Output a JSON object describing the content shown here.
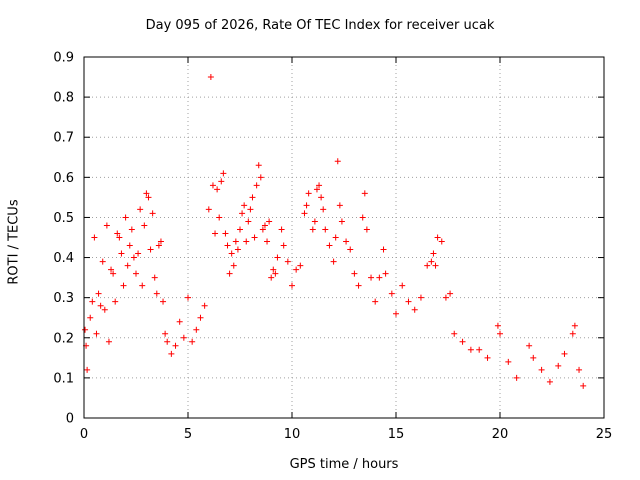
{
  "chart_data": {
    "type": "scatter",
    "title": "Day 095 of 2026, Rate Of TEC Index for receiver ucak",
    "xlabel": "GPS time / hours",
    "ylabel": "ROTI / TECUs",
    "xlim": [
      0,
      25
    ],
    "ylim": [
      0,
      0.9
    ],
    "xticks": [
      "0",
      "5",
      "10",
      "15",
      "20",
      "25"
    ],
    "yticks": [
      "0",
      "0.1",
      "0.2",
      "0.3",
      "0.4",
      "0.5",
      "0.6",
      "0.7",
      "0.8",
      "0.9"
    ],
    "grid": true,
    "marker": "+",
    "color": "#ff0000",
    "series": [
      {
        "values": [
          [
            0.05,
            0.22
          ],
          [
            0.1,
            0.18
          ],
          [
            0.15,
            0.12
          ],
          [
            0.3,
            0.25
          ],
          [
            0.4,
            0.29
          ],
          [
            0.5,
            0.45
          ],
          [
            0.6,
            0.21
          ],
          [
            0.7,
            0.31
          ],
          [
            0.8,
            0.28
          ],
          [
            0.9,
            0.39
          ],
          [
            1.0,
            0.27
          ],
          [
            1.1,
            0.48
          ],
          [
            1.2,
            0.19
          ],
          [
            1.3,
            0.37
          ],
          [
            1.4,
            0.36
          ],
          [
            1.5,
            0.29
          ],
          [
            1.6,
            0.46
          ],
          [
            1.7,
            0.45
          ],
          [
            1.8,
            0.41
          ],
          [
            1.9,
            0.33
          ],
          [
            2.0,
            0.5
          ],
          [
            2.1,
            0.38
          ],
          [
            2.2,
            0.43
          ],
          [
            2.3,
            0.47
          ],
          [
            2.4,
            0.4
          ],
          [
            2.5,
            0.36
          ],
          [
            2.6,
            0.41
          ],
          [
            2.7,
            0.52
          ],
          [
            2.8,
            0.33
          ],
          [
            2.9,
            0.48
          ],
          [
            3.0,
            0.56
          ],
          [
            3.1,
            0.55
          ],
          [
            3.2,
            0.42
          ],
          [
            3.3,
            0.51
          ],
          [
            3.4,
            0.35
          ],
          [
            3.5,
            0.31
          ],
          [
            3.6,
            0.43
          ],
          [
            3.7,
            0.44
          ],
          [
            3.8,
            0.29
          ],
          [
            3.9,
            0.21
          ],
          [
            4.0,
            0.19
          ],
          [
            4.2,
            0.16
          ],
          [
            4.4,
            0.18
          ],
          [
            4.6,
            0.24
          ],
          [
            4.8,
            0.2
          ],
          [
            5.0,
            0.3
          ],
          [
            5.2,
            0.19
          ],
          [
            5.4,
            0.22
          ],
          [
            5.6,
            0.25
          ],
          [
            5.8,
            0.28
          ],
          [
            6.0,
            0.52
          ],
          [
            6.1,
            0.85
          ],
          [
            6.2,
            0.58
          ],
          [
            6.3,
            0.46
          ],
          [
            6.4,
            0.57
          ],
          [
            6.5,
            0.5
          ],
          [
            6.6,
            0.59
          ],
          [
            6.7,
            0.61
          ],
          [
            6.8,
            0.46
          ],
          [
            6.9,
            0.43
          ],
          [
            7.0,
            0.36
          ],
          [
            7.1,
            0.41
          ],
          [
            7.2,
            0.38
          ],
          [
            7.3,
            0.44
          ],
          [
            7.4,
            0.42
          ],
          [
            7.5,
            0.47
          ],
          [
            7.6,
            0.51
          ],
          [
            7.7,
            0.53
          ],
          [
            7.8,
            0.44
          ],
          [
            7.9,
            0.49
          ],
          [
            8.0,
            0.52
          ],
          [
            8.1,
            0.55
          ],
          [
            8.2,
            0.45
          ],
          [
            8.3,
            0.58
          ],
          [
            8.4,
            0.63
          ],
          [
            8.5,
            0.6
          ],
          [
            8.6,
            0.47
          ],
          [
            8.7,
            0.48
          ],
          [
            8.8,
            0.44
          ],
          [
            8.9,
            0.49
          ],
          [
            9.0,
            0.35
          ],
          [
            9.1,
            0.37
          ],
          [
            9.2,
            0.36
          ],
          [
            9.3,
            0.4
          ],
          [
            9.5,
            0.47
          ],
          [
            9.6,
            0.43
          ],
          [
            9.8,
            0.39
          ],
          [
            10.0,
            0.33
          ],
          [
            10.2,
            0.37
          ],
          [
            10.4,
            0.38
          ],
          [
            10.6,
            0.51
          ],
          [
            10.7,
            0.53
          ],
          [
            10.8,
            0.56
          ],
          [
            11.0,
            0.47
          ],
          [
            11.1,
            0.49
          ],
          [
            11.2,
            0.57
          ],
          [
            11.3,
            0.58
          ],
          [
            11.4,
            0.55
          ],
          [
            11.5,
            0.52
          ],
          [
            11.6,
            0.47
          ],
          [
            11.8,
            0.43
          ],
          [
            12.0,
            0.39
          ],
          [
            12.1,
            0.45
          ],
          [
            12.2,
            0.64
          ],
          [
            12.3,
            0.53
          ],
          [
            12.4,
            0.49
          ],
          [
            12.6,
            0.44
          ],
          [
            12.8,
            0.42
          ],
          [
            13.0,
            0.36
          ],
          [
            13.2,
            0.33
          ],
          [
            13.4,
            0.5
          ],
          [
            13.5,
            0.56
          ],
          [
            13.6,
            0.47
          ],
          [
            13.8,
            0.35
          ],
          [
            14.0,
            0.29
          ],
          [
            14.2,
            0.35
          ],
          [
            14.4,
            0.42
          ],
          [
            14.5,
            0.36
          ],
          [
            14.8,
            0.31
          ],
          [
            15.0,
            0.26
          ],
          [
            15.3,
            0.33
          ],
          [
            15.6,
            0.29
          ],
          [
            15.9,
            0.27
          ],
          [
            16.2,
            0.3
          ],
          [
            16.5,
            0.38
          ],
          [
            16.7,
            0.39
          ],
          [
            16.8,
            0.41
          ],
          [
            16.9,
            0.38
          ],
          [
            17.0,
            0.45
          ],
          [
            17.2,
            0.44
          ],
          [
            17.4,
            0.3
          ],
          [
            17.6,
            0.31
          ],
          [
            17.8,
            0.21
          ],
          [
            18.2,
            0.19
          ],
          [
            18.6,
            0.17
          ],
          [
            19.0,
            0.17
          ],
          [
            19.4,
            0.15
          ],
          [
            19.9,
            0.23
          ],
          [
            20.0,
            0.21
          ],
          [
            20.4,
            0.14
          ],
          [
            20.8,
            0.1
          ],
          [
            21.4,
            0.18
          ],
          [
            21.6,
            0.15
          ],
          [
            22.0,
            0.12
          ],
          [
            22.4,
            0.09
          ],
          [
            22.8,
            0.13
          ],
          [
            23.1,
            0.16
          ],
          [
            23.5,
            0.21
          ],
          [
            23.6,
            0.23
          ],
          [
            23.8,
            0.12
          ],
          [
            24.0,
            0.08
          ]
        ]
      }
    ]
  }
}
